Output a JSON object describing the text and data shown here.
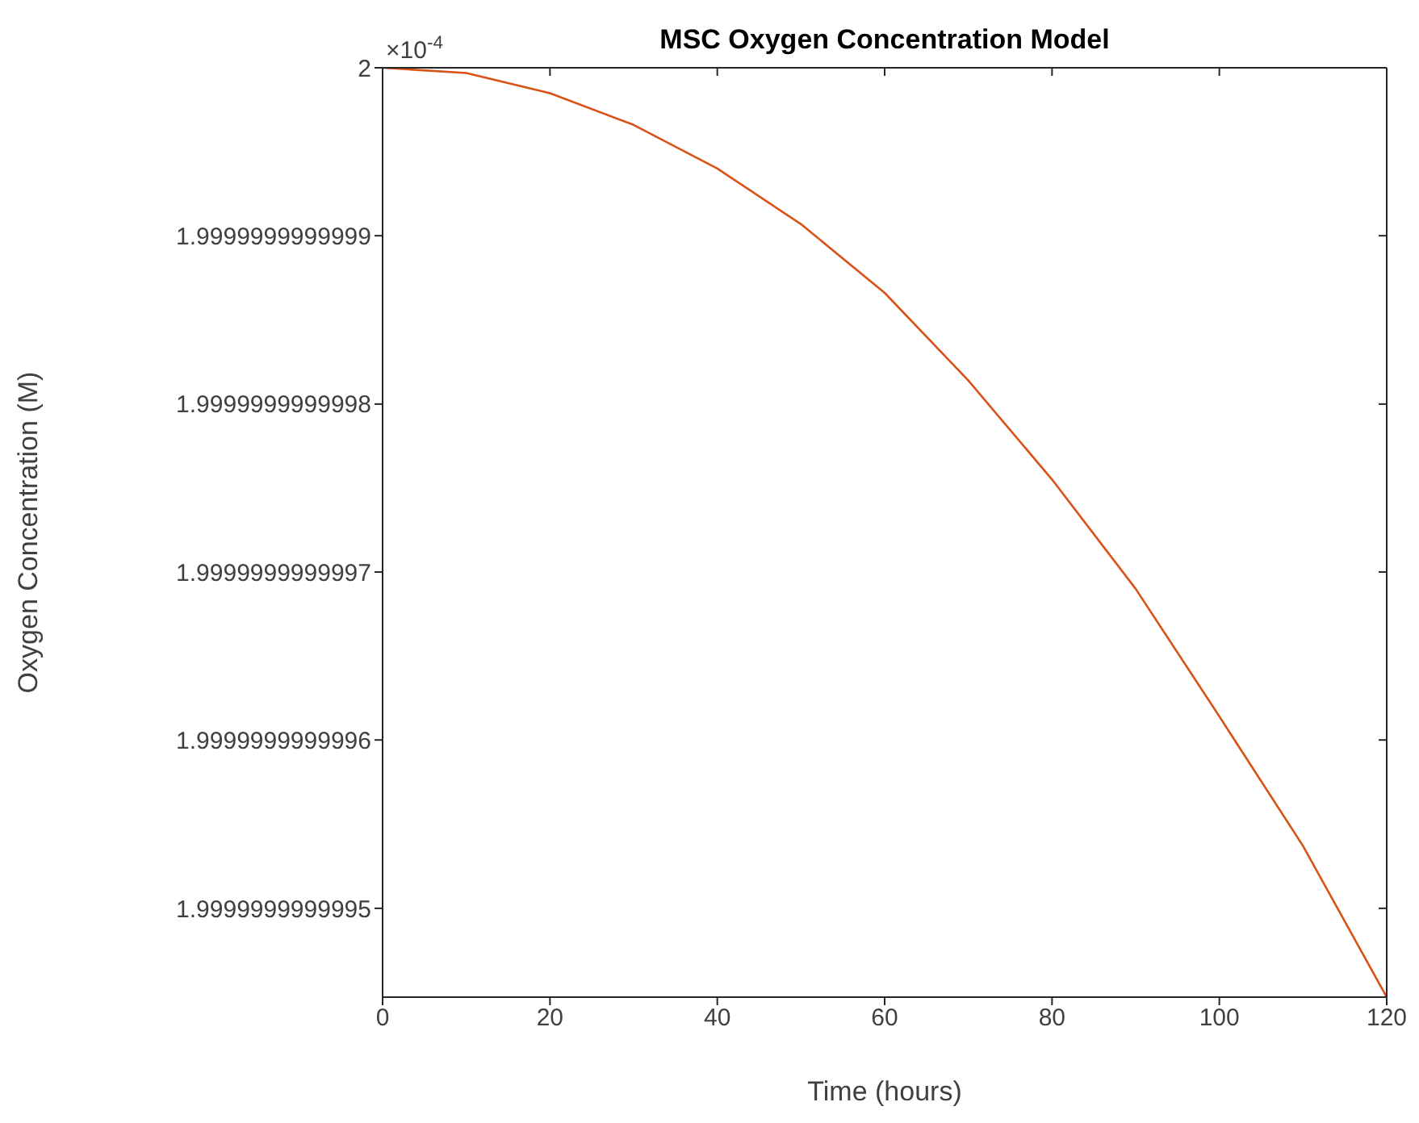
{
  "chart_data": {
    "type": "line",
    "title": "MSC Oxygen Concentration Model",
    "xlabel": "Time (hours)",
    "ylabel": "Oxygen Concentration (M)",
    "annotations": [
      "×10$^{-4}$"
    ],
    "x": [
      0,
      10,
      20,
      30,
      40,
      50,
      60,
      70,
      80,
      90,
      100,
      110,
      120
    ],
    "series": [
      {
        "color": "#d95319",
        "values": [
          2,
          1.999999999999997,
          1.999999999999985,
          1.999999999999966,
          1.99999999999994,
          1.999999999999907,
          1.999999999999866,
          1.999999999999814,
          1.999999999999755,
          1.99999999999969,
          1.999999999999614,
          1.999999999999537,
          1.999999999999447
        ]
      }
    ],
    "xlim": [
      0,
      120
    ],
    "xticks": [
      0,
      20,
      40,
      60,
      80,
      100,
      120
    ],
    "ylim": [
      1.999999999999447,
      2
    ],
    "yticks": [
      1.9999999999995,
      1.9999999999996,
      1.9999999999997,
      1.9999999999998,
      1.9999999999999,
      2
    ],
    "grid": false,
    "legend": false,
    "marker": "none",
    "line_style": "solid"
  }
}
